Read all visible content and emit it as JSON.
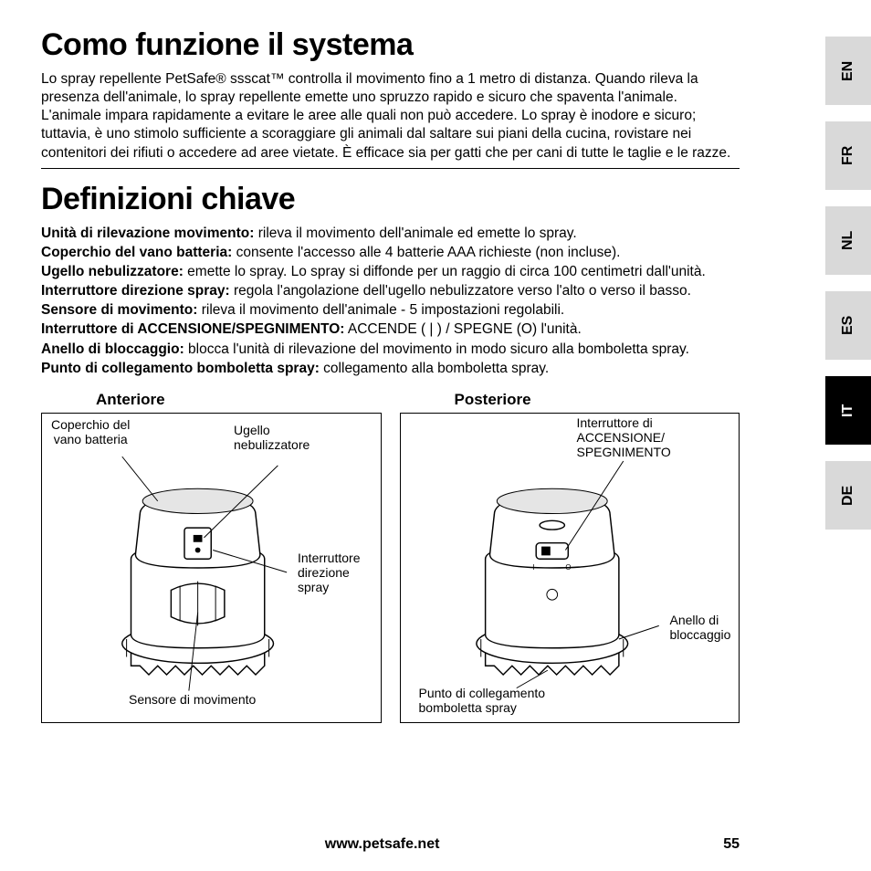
{
  "heading1": "Como funzione il systema",
  "intro": "Lo spray repellente PetSafe® ssscat™ controlla il movimento fino a 1 metro di distanza. Quando rileva la presenza dell'animale, lo spray repellente emette uno spruzzo rapido e sicuro che spaventa l'animale. L'animale impara rapidamente a evitare le aree alle quali non può accedere. Lo spray è inodore e sicuro; tuttavia, è uno stimolo sufficiente a scoraggiare gli animali dal saltare sui piani della cucina, rovistare nei contenitori dei rifiuti o accedere ad aree vietate. È efficace sia per gatti che per cani di tutte le taglie e le razze.",
  "heading2": "Definizioni chiave",
  "definitions": [
    {
      "term": "Unità di rilevazione movimento:",
      "desc": " rileva il movimento dell'animale ed emette lo spray."
    },
    {
      "term": "Coperchio del vano batteria:",
      "desc": " consente l'accesso alle 4 batterie AAA richieste (non incluse)."
    },
    {
      "term": "Ugello nebulizzatore:",
      "desc": " emette lo spray. Lo spray si diffonde per un raggio di circa 100 centimetri dall'unità."
    },
    {
      "term": "Interruttore direzione spray:",
      "desc": " regola l'angolazione dell'ugello nebulizzatore verso l'alto o verso il basso."
    },
    {
      "term": "Sensore di movimento:",
      "desc": " rileva il movimento dell'animale - 5 impostazioni regolabili."
    },
    {
      "term": "Interruttore di ACCENSIONE/SPEGNIMENTO:",
      "desc": " ACCENDE ( | ) / SPEGNE (O) l'unità."
    },
    {
      "term": "Anello di bloccaggio:",
      "desc": " blocca l'unità di rilevazione del movimento in modo sicuro alla bomboletta spray."
    },
    {
      "term": "Punto di collegamento bomboletta spray:",
      "desc": " collegamento alla bomboletta spray."
    }
  ],
  "diagram": {
    "front": {
      "title": "Anteriore",
      "labels": {
        "battery": "Coperchio del\nvano batteria",
        "nozzle": "Ugello\nnebulizzatore",
        "switch": "Interruttore\ndirezione\nspray",
        "sensor": "Sensore di movimento"
      }
    },
    "rear": {
      "title": "Posteriore",
      "labels": {
        "onoff": "Interruttore di\nACCENSIONE/\nSPEGNIMENTO",
        "ring": "Anello di\nbloccaggio",
        "connect": "Punto di collegamento\nbomboletta spray"
      }
    }
  },
  "langs": [
    {
      "code": "EN",
      "active": false
    },
    {
      "code": "FR",
      "active": false
    },
    {
      "code": "NL",
      "active": false
    },
    {
      "code": "ES",
      "active": false
    },
    {
      "code": "IT",
      "active": true
    },
    {
      "code": "DE",
      "active": false
    }
  ],
  "footer": {
    "url": "www.petsafe.net",
    "page": "55"
  },
  "colors": {
    "text": "#000000",
    "bg": "#ffffff",
    "tab_inactive": "#d9d9d9",
    "tab_active": "#000000",
    "shade": "#e5e5e5"
  }
}
